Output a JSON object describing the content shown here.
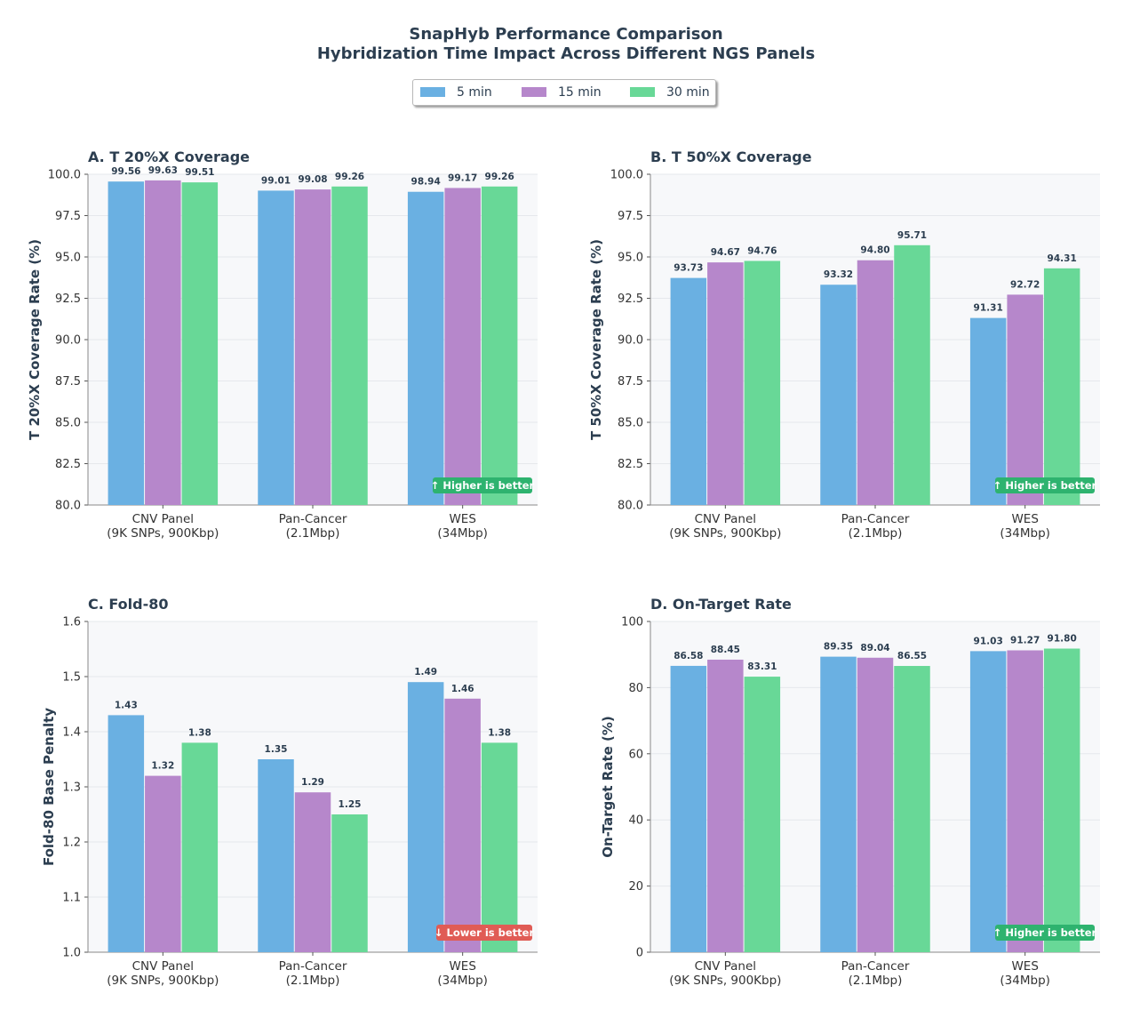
{
  "title": "SnapHyb Performance Comparison",
  "subtitle": "Hybridization Time Impact Across Different NGS Panels",
  "colors": {
    "5 min": "#6ab0e2",
    "15 min": "#b687cb",
    "30 min": "#68d897",
    "good_badge": "#2eb36f",
    "bad_badge": "#e05c55",
    "panel_bg": "#f7f8fa",
    "text": "#2c3e50"
  },
  "legend": [
    {
      "label": "5 min",
      "color": "#6ab0e2"
    },
    {
      "label": "15 min",
      "color": "#b687cb"
    },
    {
      "label": "30 min",
      "color": "#68d897"
    }
  ],
  "chart_data": [
    {
      "type": "bar",
      "title": "A. T 20%X Coverage",
      "xlabel": "",
      "ylabel": "T 20%X Coverage Rate (%)",
      "categories": [
        "CNV Panel\n(9K SNPs, 900Kbp)",
        "Pan-Cancer\n(2.1Mbp)",
        "WES\n(34Mbp)"
      ],
      "series": [
        {
          "name": "5 min",
          "values": [
            99.56,
            99.01,
            98.94
          ]
        },
        {
          "name": "15 min",
          "values": [
            99.63,
            99.08,
            99.17
          ]
        },
        {
          "name": "30 min",
          "values": [
            99.51,
            99.26,
            99.26
          ]
        }
      ],
      "ylim": [
        80,
        100
      ],
      "yticks": [
        80,
        82.5,
        85,
        87.5,
        90,
        92.5,
        95,
        97.5,
        100
      ],
      "ytick_decimals": 1,
      "label_decimals": 2,
      "badge": "↑ Higher is better",
      "badge_type": "good"
    },
    {
      "type": "bar",
      "title": "B. T 50%X Coverage",
      "xlabel": "",
      "ylabel": "T 50%X Coverage Rate (%)",
      "categories": [
        "CNV Panel\n(9K SNPs, 900Kbp)",
        "Pan-Cancer\n(2.1Mbp)",
        "WES\n(34Mbp)"
      ],
      "series": [
        {
          "name": "5 min",
          "values": [
            93.73,
            93.32,
            91.31
          ]
        },
        {
          "name": "15 min",
          "values": [
            94.67,
            94.8,
            92.72
          ]
        },
        {
          "name": "30 min",
          "values": [
            94.76,
            95.71,
            94.31
          ]
        }
      ],
      "ylim": [
        80,
        100
      ],
      "yticks": [
        80,
        82.5,
        85,
        87.5,
        90,
        92.5,
        95,
        97.5,
        100
      ],
      "ytick_decimals": 1,
      "label_decimals": 2,
      "badge": "↑ Higher is better",
      "badge_type": "good"
    },
    {
      "type": "bar",
      "title": "C. Fold-80",
      "xlabel": "",
      "ylabel": "Fold-80 Base Penalty",
      "categories": [
        "CNV Panel\n(9K SNPs, 900Kbp)",
        "Pan-Cancer\n(2.1Mbp)",
        "WES\n(34Mbp)"
      ],
      "series": [
        {
          "name": "5 min",
          "values": [
            1.43,
            1.35,
            1.49
          ]
        },
        {
          "name": "15 min",
          "values": [
            1.32,
            1.29,
            1.46
          ]
        },
        {
          "name": "30 min",
          "values": [
            1.38,
            1.25,
            1.38
          ]
        }
      ],
      "ylim": [
        1.0,
        1.6
      ],
      "yticks": [
        1.0,
        1.1,
        1.2,
        1.3,
        1.4,
        1.5,
        1.6
      ],
      "ytick_decimals": 1,
      "label_decimals": 2,
      "badge": "↓ Lower is better",
      "badge_type": "bad"
    },
    {
      "type": "bar",
      "title": "D. On-Target Rate",
      "xlabel": "",
      "ylabel": "On-Target Rate (%)",
      "categories": [
        "CNV Panel\n(9K SNPs, 900Kbp)",
        "Pan-Cancer\n(2.1Mbp)",
        "WES\n(34Mbp)"
      ],
      "series": [
        {
          "name": "5 min",
          "values": [
            86.58,
            89.35,
            91.03
          ]
        },
        {
          "name": "15 min",
          "values": [
            88.45,
            89.04,
            91.27
          ]
        },
        {
          "name": "30 min",
          "values": [
            83.31,
            86.55,
            91.8
          ]
        }
      ],
      "ylim": [
        0,
        100
      ],
      "yticks": [
        0,
        20,
        40,
        60,
        80,
        100
      ],
      "ytick_decimals": 0,
      "label_decimals": 2,
      "badge": "↑ Higher is better",
      "badge_type": "good"
    }
  ]
}
